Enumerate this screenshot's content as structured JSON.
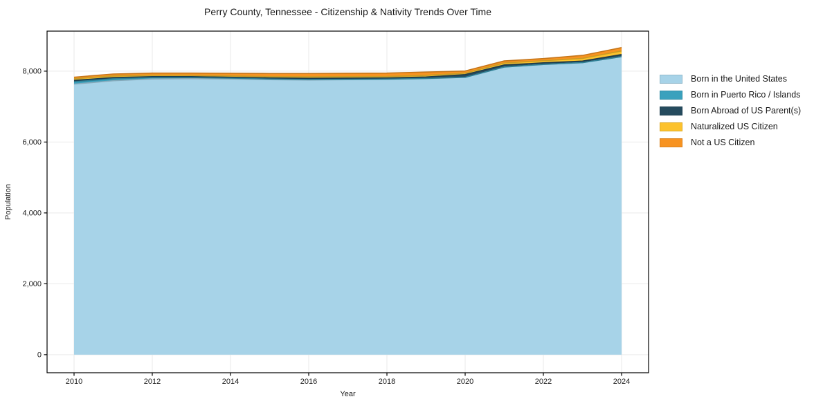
{
  "chart_data": {
    "type": "area",
    "stacked": true,
    "title": "Perry County, Tennessee - Citizenship & Nativity Trends Over Time",
    "xlabel": "Year",
    "ylabel": "Population",
    "x": [
      2010,
      2011,
      2012,
      2013,
      2014,
      2015,
      2016,
      2017,
      2018,
      2019,
      2020,
      2021,
      2022,
      2023,
      2024
    ],
    "series": [
      {
        "name": "Born in the United States",
        "color": "#a7d3e8",
        "values": [
          7635,
          7730,
          7780,
          7790,
          7780,
          7760,
          7750,
          7760,
          7770,
          7790,
          7825,
          8115,
          8190,
          8240,
          8410
        ]
      },
      {
        "name": "Born in Puerto Rico / Islands",
        "color": "#3aa1bd",
        "values": [
          65,
          55,
          40,
          30,
          25,
          20,
          15,
          10,
          5,
          5,
          0,
          0,
          0,
          0,
          0
        ]
      },
      {
        "name": "Born Abroad of US Parent(s)",
        "color": "#254b5e",
        "values": [
          40,
          35,
          25,
          25,
          25,
          30,
          35,
          35,
          35,
          40,
          80,
          60,
          45,
          45,
          60
        ]
      },
      {
        "name": "Naturalized US Citizen",
        "color": "#fcc22d",
        "values": [
          45,
          45,
          40,
          35,
          35,
          35,
          40,
          40,
          40,
          45,
          40,
          55,
          60,
          75,
          100
        ]
      },
      {
        "name": "Not a US Citizen",
        "color": "#f79321",
        "values": [
          45,
          55,
          60,
          65,
          75,
          90,
          95,
          95,
          95,
          95,
          60,
          60,
          60,
          85,
          95
        ]
      }
    ],
    "totals": [
      7830,
      7920,
      7945,
      7945,
      7940,
      7935,
      7935,
      7940,
      7945,
      7975,
      8005,
      8290,
      8355,
      8445,
      8665
    ],
    "xticks": [
      2010,
      2012,
      2014,
      2016,
      2018,
      2020,
      2022,
      2024
    ],
    "yticks": [
      0,
      2000,
      4000,
      6000,
      8000
    ],
    "ytick_labels": [
      "0",
      "2,000",
      "4,000",
      "6,000",
      "8,000"
    ],
    "xlim": [
      2009.31,
      2024.69
    ],
    "ylim": [
      -510,
      9130
    ],
    "grid": true,
    "grid_color": "#e9e9e9",
    "axis_color": "#000000",
    "text_color": "#1a1a1a",
    "legend_position": "right-of-plot"
  }
}
